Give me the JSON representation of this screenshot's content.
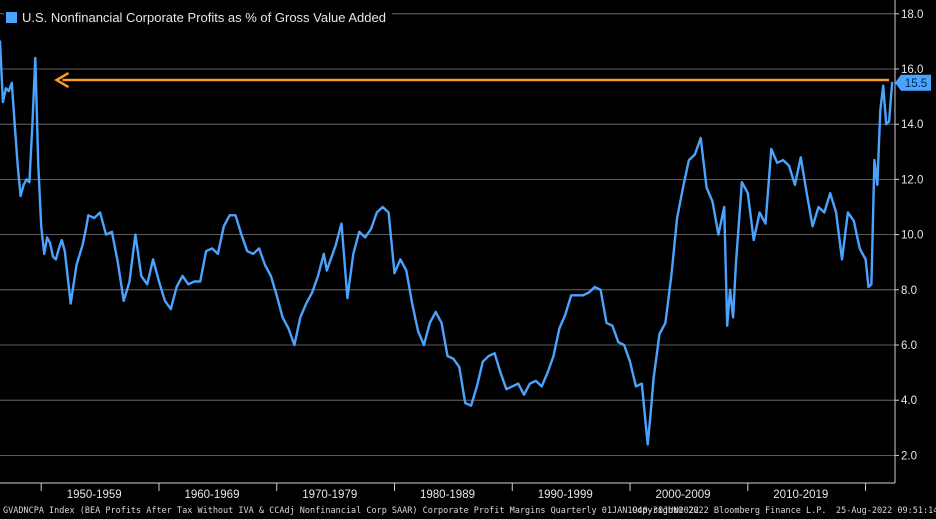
{
  "colors": {
    "background": "#000000",
    "series": "#4aa3ff",
    "arrow": "#ff9a1f",
    "grid": "#7a7a7a",
    "last_value_bg": "#4aa3ff",
    "last_value_text": "#00264d"
  },
  "legend": {
    "label": "U.S. Nonfinancial Corporate Profits as % of Gross Value Added"
  },
  "footer": {
    "source": "GVADNCPA Index (BEA Profits After Tax Without IVA & CCAdj Nonfinancial Corp SAAR) Corporate Profit Margins  Quarterly 01JAN1940-30JUN2022",
    "copyright": "Copyright® 2022 Bloomberg Finance L.P.",
    "timestamp": "25-Aug-2022 09:51:14"
  },
  "chart_data": {
    "type": "line",
    "title": "",
    "xlabel": "",
    "ylabel": "",
    "xlim": [
      1946.5,
      2022.5
    ],
    "ylim": [
      1.0,
      18.5
    ],
    "y_ticks": [
      2.0,
      4.0,
      6.0,
      8.0,
      10.0,
      12.0,
      14.0,
      16.0,
      18.0
    ],
    "x_tick_labels": [
      {
        "label": "1950-1959",
        "center": 1954.5
      },
      {
        "label": "1960-1969",
        "center": 1964.5
      },
      {
        "label": "1970-1979",
        "center": 1974.5
      },
      {
        "label": "1980-1989",
        "center": 1984.5
      },
      {
        "label": "1990-1999",
        "center": 1994.5
      },
      {
        "label": "2000-2009",
        "center": 2004.5
      },
      {
        "label": "2010-2019",
        "center": 2014.5
      }
    ],
    "grid": true,
    "legend_position": "top-left",
    "last_value": 15.5,
    "annotation": {
      "type": "arrow",
      "y": 15.6,
      "from_x": 2022.0,
      "to_x": 1951.3
    },
    "series": [
      {
        "name": "U.S. Nonfinancial Corporate Profits as % of Gross Value Added",
        "x": [
          1946.5,
          1946.75,
          1947.0,
          1947.25,
          1947.5,
          1947.75,
          1948.0,
          1948.25,
          1948.5,
          1948.75,
          1949.0,
          1949.25,
          1949.5,
          1949.75,
          1950.0,
          1950.25,
          1950.5,
          1950.75,
          1951.0,
          1951.25,
          1951.5,
          1951.75,
          1952.0,
          1952.5,
          1953.0,
          1953.5,
          1953.75,
          1954.0,
          1954.5,
          1955.0,
          1955.5,
          1956.0,
          1956.5,
          1957.0,
          1957.5,
          1958.0,
          1958.5,
          1959.0,
          1959.5,
          1960.0,
          1960.5,
          1961.0,
          1961.5,
          1962.0,
          1962.5,
          1963.0,
          1963.5,
          1964.0,
          1964.5,
          1965.0,
          1965.5,
          1966.0,
          1966.5,
          1967.0,
          1967.5,
          1968.0,
          1968.5,
          1969.0,
          1969.5,
          1970.0,
          1970.5,
          1971.0,
          1971.5,
          1972.0,
          1972.5,
          1973.0,
          1973.5,
          1974.0,
          1974.25,
          1974.5,
          1975.0,
          1975.5,
          1976.0,
          1976.5,
          1977.0,
          1977.5,
          1978.0,
          1978.5,
          1979.0,
          1979.5,
          1980.0,
          1980.5,
          1981.0,
          1981.5,
          1982.0,
          1982.5,
          1983.0,
          1983.5,
          1984.0,
          1984.5,
          1985.0,
          1985.5,
          1986.0,
          1986.5,
          1987.0,
          1987.5,
          1988.0,
          1988.5,
          1989.0,
          1989.5,
          1990.0,
          1990.5,
          1991.0,
          1991.5,
          1992.0,
          1992.5,
          1993.0,
          1993.5,
          1994.0,
          1994.5,
          1995.0,
          1995.5,
          1996.0,
          1996.5,
          1997.0,
          1997.5,
          1998.0,
          1998.5,
          1999.0,
          1999.5,
          2000.0,
          2000.5,
          2001.0,
          2001.5,
          2001.75,
          2002.0,
          2002.5,
          2003.0,
          2003.5,
          2004.0,
          2004.5,
          2005.0,
          2005.5,
          2006.0,
          2006.5,
          2007.0,
          2007.5,
          2008.0,
          2008.25,
          2008.5,
          2008.75,
          2009.0,
          2009.5,
          2010.0,
          2010.5,
          2011.0,
          2011.5,
          2012.0,
          2012.5,
          2013.0,
          2013.5,
          2014.0,
          2014.5,
          2015.0,
          2015.5,
          2016.0,
          2016.5,
          2017.0,
          2017.5,
          2018.0,
          2018.5,
          2019.0,
          2019.5,
          2020.0,
          2020.25,
          2020.5,
          2020.75,
          2021.0,
          2021.25,
          2021.5,
          2021.75,
          2022.0,
          2022.25
        ],
        "values": [
          17.0,
          14.8,
          15.3,
          15.2,
          15.5,
          14.0,
          12.5,
          11.4,
          11.8,
          12.0,
          11.9,
          14.0,
          16.4,
          12.5,
          10.3,
          9.3,
          9.9,
          9.7,
          9.2,
          9.1,
          9.5,
          9.8,
          9.4,
          7.5,
          8.9,
          9.6,
          10.1,
          10.7,
          10.6,
          10.8,
          10.0,
          10.1,
          9.0,
          7.6,
          8.3,
          10.0,
          8.5,
          8.2,
          9.1,
          8.3,
          7.6,
          7.3,
          8.1,
          8.5,
          8.2,
          8.3,
          8.3,
          9.4,
          9.5,
          9.3,
          10.3,
          10.7,
          10.7,
          10.0,
          9.4,
          9.3,
          9.5,
          8.9,
          8.5,
          7.8,
          7.0,
          6.6,
          6.0,
          7.0,
          7.5,
          7.9,
          8.5,
          9.3,
          8.7,
          9.0,
          9.6,
          10.4,
          7.7,
          9.3,
          10.1,
          9.9,
          10.2,
          10.8,
          11.0,
          10.8,
          8.6,
          9.1,
          8.7,
          7.5,
          6.5,
          6.0,
          6.8,
          7.2,
          6.8,
          5.6,
          5.5,
          5.2,
          3.9,
          3.8,
          4.5,
          5.4,
          5.6,
          5.7,
          5.0,
          4.4,
          4.5,
          4.6,
          4.2,
          4.6,
          4.7,
          4.5,
          5.0,
          5.6,
          6.6,
          7.1,
          7.8,
          7.8,
          7.8,
          7.9,
          8.1,
          8.0,
          6.8,
          6.7,
          6.1,
          6.0,
          5.4,
          4.5,
          4.6,
          2.4,
          3.5,
          4.8,
          6.4,
          6.8,
          8.5,
          10.6,
          11.7,
          12.7,
          12.9,
          13.5,
          11.7,
          11.2,
          10.0,
          11.0,
          6.7,
          8.0,
          7.0,
          9.0,
          11.9,
          11.5,
          9.8,
          10.8,
          10.4,
          13.1,
          12.6,
          12.7,
          12.5,
          11.8,
          12.8,
          11.5,
          10.3,
          11.0,
          10.8,
          11.5,
          10.8,
          9.1,
          10.8,
          10.5,
          9.5,
          9.1,
          8.1,
          8.2,
          12.7,
          11.8,
          14.5,
          15.4,
          14.0,
          14.1,
          15.5
        ]
      }
    ]
  }
}
